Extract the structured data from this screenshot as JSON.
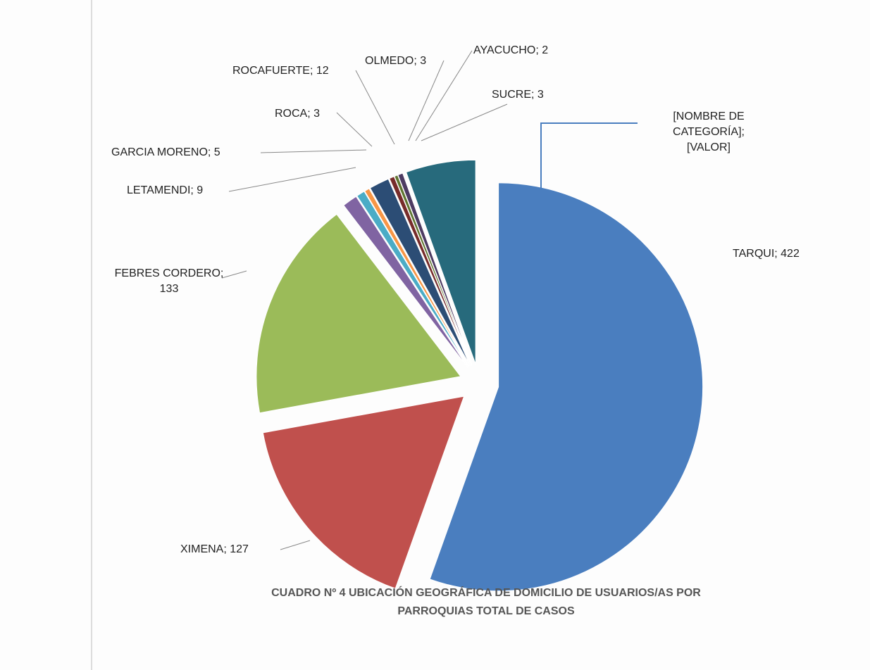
{
  "chart_data": {
    "type": "pie",
    "title_lines": [
      "CUADRO Nº 4 UBICACIÓN GEOGRÁFICA DE DOMICILIO DE USUARIOS/AS POR",
      "PARROQUIAS TOTAL DE CASOS"
    ],
    "categories": [
      "TARQUI",
      "XIMENA",
      "FEBRES CORDERO",
      "LETAMENDI",
      "GARCIA MORENO",
      "ROCA",
      "ROCAFUERTE",
      "OLMEDO",
      "AYACUCHO",
      "SUCRE",
      "[NOMBRE DE CATEGORÍA]"
    ],
    "values": [
      422,
      127,
      133,
      9,
      5,
      3,
      12,
      3,
      2,
      3,
      42
    ],
    "value_labels": [
      null,
      null,
      null,
      null,
      null,
      null,
      null,
      null,
      null,
      null,
      "[VALOR]"
    ],
    "label_separator": "; ",
    "colors": [
      "#4a7ebf",
      "#c0504d",
      "#9bbb59",
      "#8064a2",
      "#4bacc6",
      "#f79646",
      "#2c4d75",
      "#772c2a",
      "#5f7530",
      "#4d3b62",
      "#276a7c"
    ]
  }
}
